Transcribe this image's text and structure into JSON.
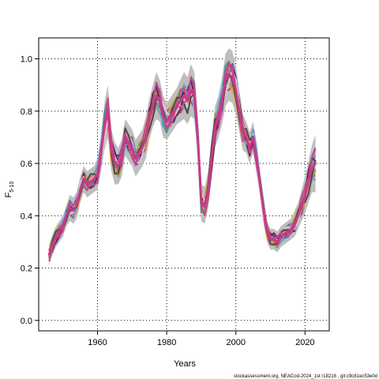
{
  "chart_data": {
    "type": "line",
    "title": "",
    "xlabel": "Years",
    "ylabel_main": "F",
    "ylabel_sub": "5-10",
    "xlim": [
      1943,
      2027
    ],
    "ylim": [
      -0.04,
      1.08
    ],
    "x_ticks": [
      1960,
      1980,
      2000,
      2020
    ],
    "y_ticks": [
      0.0,
      0.2,
      0.4,
      0.6,
      0.8,
      1.0
    ],
    "grid": true,
    "footnote": "stockassessment.org, NEACod-2024_1st r18216 , git:c9c81ec53e0d",
    "colors": {
      "band": "#bebebe",
      "series": [
        "#d4aa45",
        "#8c5a9e",
        "#6fb9cc",
        "#a84d6b",
        "#2d2f93",
        "#9ba03a",
        "#c97aa8",
        "#3a9a8c",
        "#e0a040",
        "#7a1f3d",
        "#6a9bd0",
        "#e2c6d4",
        "#d6486e",
        "#4a4a4a",
        "#b84a9a"
      ],
      "highlight": "#c63a86"
    },
    "x": [
      1946,
      1947,
      1948,
      1949,
      1950,
      1951,
      1952,
      1953,
      1954,
      1955,
      1956,
      1957,
      1958,
      1959,
      1960,
      1961,
      1962,
      1963,
      1964,
      1965,
      1966,
      1967,
      1968,
      1969,
      1970,
      1971,
      1972,
      1973,
      1974,
      1975,
      1976,
      1977,
      1978,
      1979,
      1980,
      1981,
      1982,
      1983,
      1984,
      1985,
      1986,
      1987,
      1988,
      1989,
      1990,
      1991,
      1992,
      1993,
      1994,
      1995,
      1996,
      1997,
      1998,
      1999,
      2000,
      2001,
      2002,
      2003,
      2004,
      2005,
      2006,
      2007,
      2008,
      2009,
      2010,
      2011,
      2012,
      2013,
      2014,
      2015,
      2016,
      2017,
      2018,
      2019,
      2020,
      2021,
      2022,
      2023
    ],
    "central": [
      0.25,
      0.29,
      0.32,
      0.34,
      0.36,
      0.4,
      0.43,
      0.42,
      0.44,
      0.5,
      0.54,
      0.52,
      0.53,
      0.54,
      0.56,
      0.64,
      0.74,
      0.8,
      0.65,
      0.6,
      0.59,
      0.62,
      0.7,
      0.68,
      0.66,
      0.62,
      0.64,
      0.66,
      0.7,
      0.77,
      0.82,
      0.86,
      0.84,
      0.78,
      0.76,
      0.78,
      0.8,
      0.82,
      0.84,
      0.86,
      0.84,
      0.88,
      0.86,
      0.7,
      0.45,
      0.44,
      0.5,
      0.62,
      0.74,
      0.78,
      0.84,
      0.92,
      0.94,
      0.93,
      0.88,
      0.8,
      0.72,
      0.7,
      0.66,
      0.7,
      0.62,
      0.52,
      0.42,
      0.34,
      0.31,
      0.31,
      0.3,
      0.32,
      0.33,
      0.34,
      0.35,
      0.37,
      0.4,
      0.44,
      0.48,
      0.53,
      0.58,
      0.6
    ],
    "band_width": [
      0.04,
      0.04,
      0.04,
      0.04,
      0.04,
      0.04,
      0.05,
      0.05,
      0.05,
      0.05,
      0.05,
      0.05,
      0.05,
      0.05,
      0.06,
      0.07,
      0.09,
      0.1,
      0.08,
      0.08,
      0.07,
      0.07,
      0.07,
      0.07,
      0.07,
      0.07,
      0.07,
      0.07,
      0.08,
      0.08,
      0.08,
      0.09,
      0.08,
      0.08,
      0.07,
      0.07,
      0.07,
      0.07,
      0.08,
      0.09,
      0.09,
      0.1,
      0.09,
      0.08,
      0.07,
      0.07,
      0.07,
      0.08,
      0.08,
      0.08,
      0.09,
      0.1,
      0.1,
      0.1,
      0.09,
      0.08,
      0.07,
      0.06,
      0.06,
      0.06,
      0.06,
      0.05,
      0.05,
      0.04,
      0.04,
      0.04,
      0.04,
      0.04,
      0.04,
      0.04,
      0.04,
      0.05,
      0.05,
      0.06,
      0.07,
      0.08,
      0.09,
      0.11
    ]
  }
}
